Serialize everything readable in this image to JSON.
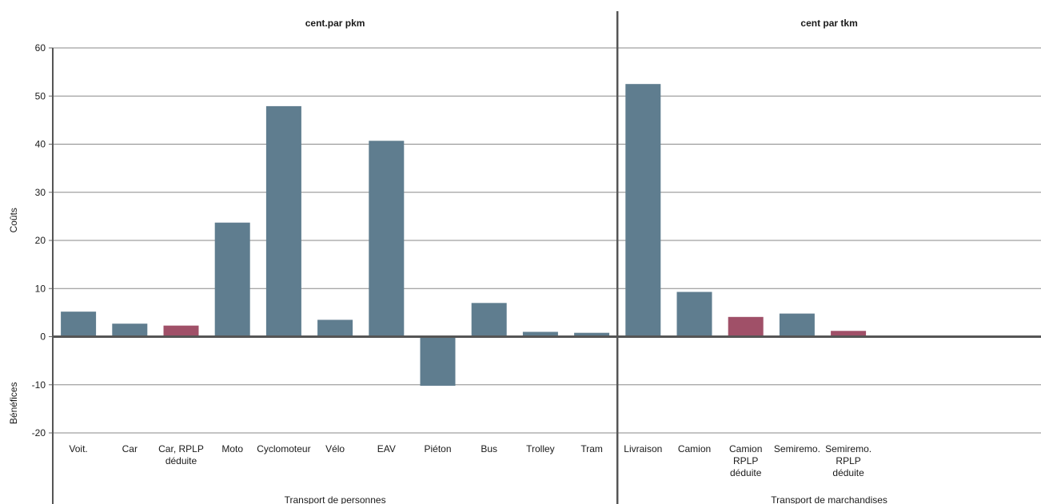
{
  "chart_data": {
    "type": "bar",
    "section_titles": [
      "cent.par pkm",
      "cent par tkm"
    ],
    "group_labels": [
      "Transport de personnes",
      "Transport de marchandises"
    ],
    "ylabel_positive": "Coûts",
    "ylabel_negative": "Bénéfices",
    "ylim": [
      -20,
      60
    ],
    "yticks": [
      -20,
      -10,
      0,
      10,
      20,
      30,
      40,
      50,
      60
    ],
    "grid": true,
    "legend": "none",
    "colors": {
      "standard": "#5f7d8f",
      "rplp": "#a05068"
    },
    "categories": [
      {
        "label": [
          "Voit."
        ],
        "value": 5.2,
        "group": 0,
        "color": "standard"
      },
      {
        "label": [
          "Car"
        ],
        "value": 2.7,
        "group": 0,
        "color": "standard"
      },
      {
        "label": [
          "Car, RPLP",
          "déduite"
        ],
        "value": 2.3,
        "group": 0,
        "color": "rplp"
      },
      {
        "label": [
          "Moto"
        ],
        "value": 23.7,
        "group": 0,
        "color": "standard"
      },
      {
        "label": [
          "Cyclomoteur"
        ],
        "value": 47.9,
        "group": 0,
        "color": "standard"
      },
      {
        "label": [
          "Vélo"
        ],
        "value": 3.5,
        "group": 0,
        "color": "standard"
      },
      {
        "label": [
          "EAV"
        ],
        "value": 40.7,
        "group": 0,
        "color": "standard"
      },
      {
        "label": [
          "Piéton"
        ],
        "value": -10.2,
        "group": 0,
        "color": "standard"
      },
      {
        "label": [
          "Bus"
        ],
        "value": 7.0,
        "group": 0,
        "color": "standard"
      },
      {
        "label": [
          "Trolley"
        ],
        "value": 1.0,
        "group": 0,
        "color": "standard"
      },
      {
        "label": [
          "Tram"
        ],
        "value": 0.8,
        "group": 0,
        "color": "standard"
      },
      {
        "label": [
          "Livraison"
        ],
        "value": 52.5,
        "group": 1,
        "color": "standard"
      },
      {
        "label": [
          "Camion"
        ],
        "value": 9.3,
        "group": 1,
        "color": "standard"
      },
      {
        "label": [
          "Camion",
          "RPLP",
          "déduite"
        ],
        "value": 4.1,
        "group": 1,
        "color": "rplp"
      },
      {
        "label": [
          "Semiremo."
        ],
        "value": 4.8,
        "group": 1,
        "color": "standard"
      },
      {
        "label": [
          "Semiremo.",
          "RPLP",
          "déduite"
        ],
        "value": 1.2,
        "group": 1,
        "color": "rplp"
      }
    ]
  }
}
